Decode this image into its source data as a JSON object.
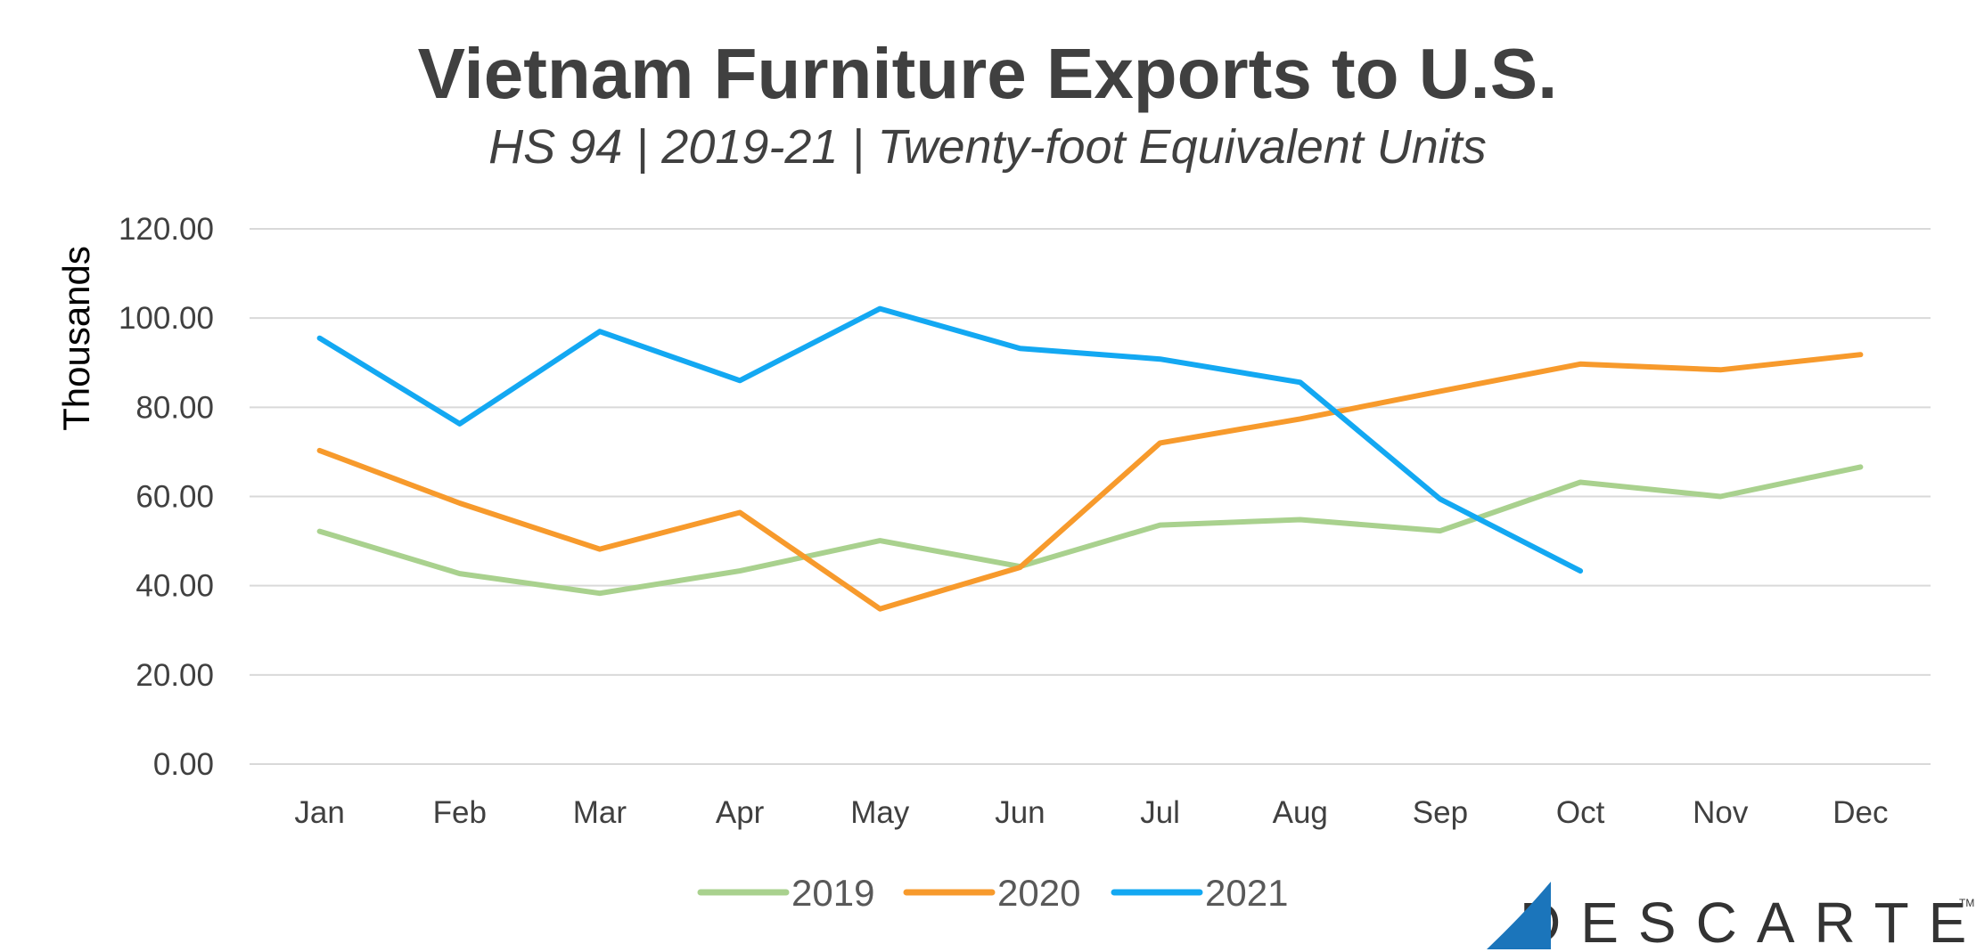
{
  "chart_data": {
    "type": "line",
    "title": "Vietnam Furniture Exports to U.S.",
    "subtitle": "HS 94 | 2019-21 | Twenty-foot Equivalent Units",
    "xlabel": "",
    "ylabel": "Thousands",
    "ylim": [
      0,
      120
    ],
    "y_ticks": [
      "0.00",
      "20.00",
      "40.00",
      "60.00",
      "80.00",
      "100.00",
      "120.00"
    ],
    "grid": true,
    "legend_position": "bottom",
    "categories": [
      "Jan",
      "Feb",
      "Mar",
      "Apr",
      "May",
      "Jun",
      "Jul",
      "Aug",
      "Sep",
      "Oct",
      "Nov",
      "Dec"
    ],
    "series": [
      {
        "name": "2019",
        "color": "#A9D18E",
        "values": [
          52.2,
          42.7,
          38.3,
          43.3,
          50.1,
          44.3,
          53.6,
          54.8,
          52.3,
          63.2,
          60.0,
          66.6
        ]
      },
      {
        "name": "2020",
        "color": "#F79A2C",
        "values": [
          70.3,
          58.5,
          48.2,
          56.4,
          34.8,
          44.1,
          72.0,
          77.4,
          83.6,
          89.7,
          88.4,
          91.8
        ]
      },
      {
        "name": "2021",
        "color": "#13A8F2",
        "values": [
          95.5,
          76.3,
          97.0,
          86.0,
          102.1,
          93.2,
          90.8,
          85.6,
          59.4,
          43.3,
          null,
          null
        ]
      }
    ]
  },
  "brand": {
    "name": "DESCARTES",
    "trademark": "TM",
    "mark_color": "#1B75BB"
  }
}
